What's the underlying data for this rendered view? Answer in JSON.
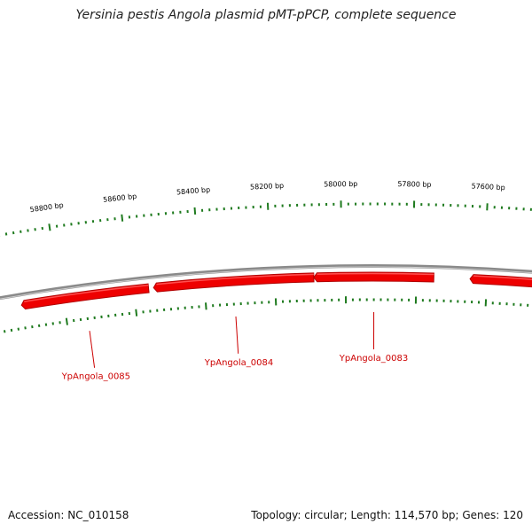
{
  "title": "Yersinia pestis Angola plasmid pMT-pPCP, complete sequence",
  "footer": {
    "accession": "Accession: NC_010158",
    "summary": "Topology: circular; Length: 114,570 bp; Genes: 120"
  },
  "colors": {
    "tick": "#1e7a1e",
    "backbone": "#8a8a8a",
    "gene_fill": "#ee0000",
    "gene_dark": "#b00000",
    "label": "#cc0000"
  },
  "tick_labels": [
    "58800 bp",
    "58600 bp",
    "58400 bp",
    "58200 bp",
    "58000 bp",
    "57800 bp",
    "57600 bp"
  ],
  "genes": [
    {
      "label": "YpAngola_0085"
    },
    {
      "label": "YpAngola_0084"
    },
    {
      "label": "YpAngola_0083"
    },
    {
      "label": ""
    }
  ]
}
